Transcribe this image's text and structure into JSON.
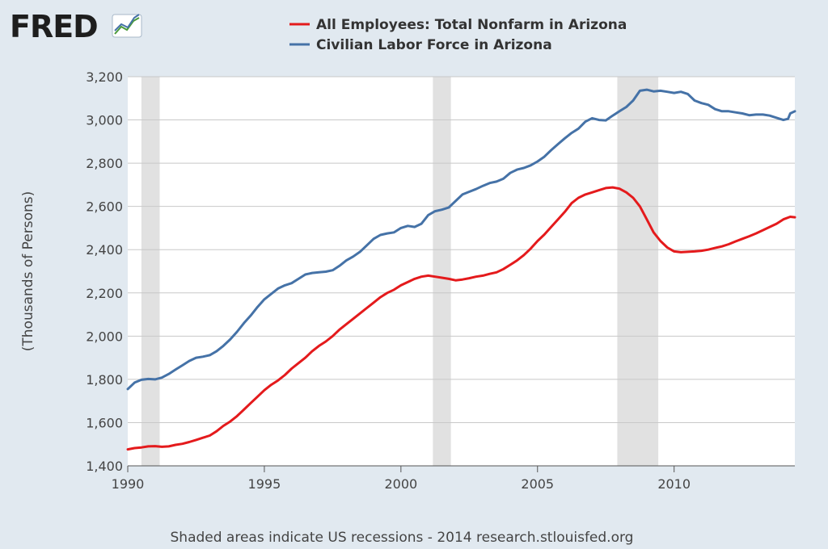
{
  "logo": {
    "text": "FRED"
  },
  "footer": {
    "note": "Shaded areas indicate US recessions - 2014 research.stlouisfed.org"
  },
  "colors": {
    "background": "#e1e9f0",
    "plot": "#ffffff",
    "recession": "#e1e1e1",
    "grid": "#c8c8c8",
    "series_red": "#e41a1c",
    "series_blue": "#4572a7"
  },
  "chart_data": {
    "type": "line",
    "ylabel": "(Thousands of Persons)",
    "xlim": [
      1990.0,
      2014.42
    ],
    "ylim": [
      1400,
      3200
    ],
    "xticks": [
      1990,
      1995,
      2000,
      2005,
      2010
    ],
    "yticks": [
      1400,
      1600,
      1800,
      2000,
      2200,
      2400,
      2600,
      2800,
      3000,
      3200
    ],
    "ytick_labels": [
      "1,400",
      "1,600",
      "1,800",
      "2,000",
      "2,200",
      "2,400",
      "2,600",
      "2,800",
      "3,000",
      "3,200"
    ],
    "grid": true,
    "legend_position": "top-center",
    "recessions": [
      [
        1990.5,
        1991.17
      ],
      [
        2001.17,
        2001.83
      ],
      [
        2007.92,
        2009.42
      ]
    ],
    "series": [
      {
        "name": "All Employees: Total Nonfarm in Arizona",
        "color": "#e41a1c",
        "points": [
          [
            1990.0,
            1476
          ],
          [
            1990.25,
            1482
          ],
          [
            1990.5,
            1485
          ],
          [
            1990.75,
            1490
          ],
          [
            1991.0,
            1491
          ],
          [
            1991.25,
            1488
          ],
          [
            1991.5,
            1490
          ],
          [
            1991.75,
            1497
          ],
          [
            1992.0,
            1502
          ],
          [
            1992.25,
            1510
          ],
          [
            1992.5,
            1520
          ],
          [
            1992.75,
            1530
          ],
          [
            1993.0,
            1540
          ],
          [
            1993.25,
            1560
          ],
          [
            1993.5,
            1585
          ],
          [
            1993.75,
            1605
          ],
          [
            1994.0,
            1630
          ],
          [
            1994.25,
            1660
          ],
          [
            1994.5,
            1690
          ],
          [
            1994.75,
            1720
          ],
          [
            1995.0,
            1750
          ],
          [
            1995.25,
            1775
          ],
          [
            1995.5,
            1795
          ],
          [
            1995.75,
            1820
          ],
          [
            1996.0,
            1850
          ],
          [
            1996.25,
            1875
          ],
          [
            1996.5,
            1900
          ],
          [
            1996.75,
            1930
          ],
          [
            1997.0,
            1955
          ],
          [
            1997.25,
            1975
          ],
          [
            1997.5,
            2000
          ],
          [
            1997.75,
            2030
          ],
          [
            1998.0,
            2055
          ],
          [
            1998.25,
            2080
          ],
          [
            1998.5,
            2105
          ],
          [
            1998.75,
            2130
          ],
          [
            1999.0,
            2155
          ],
          [
            1999.25,
            2180
          ],
          [
            1999.5,
            2200
          ],
          [
            1999.75,
            2215
          ],
          [
            2000.0,
            2235
          ],
          [
            2000.25,
            2250
          ],
          [
            2000.5,
            2265
          ],
          [
            2000.75,
            2275
          ],
          [
            2001.0,
            2280
          ],
          [
            2001.25,
            2275
          ],
          [
            2001.5,
            2270
          ],
          [
            2001.75,
            2265
          ],
          [
            2002.0,
            2258
          ],
          [
            2002.25,
            2262
          ],
          [
            2002.5,
            2268
          ],
          [
            2002.75,
            2275
          ],
          [
            2003.0,
            2280
          ],
          [
            2003.25,
            2288
          ],
          [
            2003.5,
            2295
          ],
          [
            2003.75,
            2310
          ],
          [
            2004.0,
            2330
          ],
          [
            2004.25,
            2350
          ],
          [
            2004.5,
            2375
          ],
          [
            2004.75,
            2405
          ],
          [
            2005.0,
            2440
          ],
          [
            2005.25,
            2470
          ],
          [
            2005.5,
            2505
          ],
          [
            2005.75,
            2540
          ],
          [
            2006.0,
            2575
          ],
          [
            2006.25,
            2615
          ],
          [
            2006.5,
            2640
          ],
          [
            2006.75,
            2655
          ],
          [
            2007.0,
            2665
          ],
          [
            2007.25,
            2675
          ],
          [
            2007.5,
            2685
          ],
          [
            2007.75,
            2688
          ],
          [
            2008.0,
            2682
          ],
          [
            2008.25,
            2665
          ],
          [
            2008.5,
            2640
          ],
          [
            2008.75,
            2600
          ],
          [
            2009.0,
            2540
          ],
          [
            2009.25,
            2480
          ],
          [
            2009.5,
            2440
          ],
          [
            2009.75,
            2410
          ],
          [
            2010.0,
            2392
          ],
          [
            2010.25,
            2388
          ],
          [
            2010.5,
            2390
          ],
          [
            2010.75,
            2392
          ],
          [
            2011.0,
            2395
          ],
          [
            2011.25,
            2400
          ],
          [
            2011.5,
            2408
          ],
          [
            2011.75,
            2415
          ],
          [
            2012.0,
            2425
          ],
          [
            2012.25,
            2438
          ],
          [
            2012.5,
            2450
          ],
          [
            2012.75,
            2462
          ],
          [
            2013.0,
            2475
          ],
          [
            2013.25,
            2490
          ],
          [
            2013.5,
            2505
          ],
          [
            2013.75,
            2520
          ],
          [
            2014.0,
            2540
          ],
          [
            2014.25,
            2552
          ],
          [
            2014.42,
            2550
          ]
        ]
      },
      {
        "name": "Civilian Labor Force in Arizona",
        "color": "#4572a7",
        "points": [
          [
            1990.0,
            1755
          ],
          [
            1990.25,
            1785
          ],
          [
            1990.5,
            1798
          ],
          [
            1990.75,
            1802
          ],
          [
            1991.0,
            1800
          ],
          [
            1991.25,
            1808
          ],
          [
            1991.5,
            1825
          ],
          [
            1991.75,
            1845
          ],
          [
            1992.0,
            1865
          ],
          [
            1992.25,
            1885
          ],
          [
            1992.5,
            1900
          ],
          [
            1992.75,
            1905
          ],
          [
            1993.0,
            1912
          ],
          [
            1993.25,
            1930
          ],
          [
            1993.5,
            1955
          ],
          [
            1993.75,
            1985
          ],
          [
            1994.0,
            2020
          ],
          [
            1994.25,
            2060
          ],
          [
            1994.5,
            2095
          ],
          [
            1994.75,
            2135
          ],
          [
            1995.0,
            2170
          ],
          [
            1995.25,
            2195
          ],
          [
            1995.5,
            2220
          ],
          [
            1995.75,
            2235
          ],
          [
            1996.0,
            2245
          ],
          [
            1996.25,
            2265
          ],
          [
            1996.5,
            2285
          ],
          [
            1996.75,
            2292
          ],
          [
            1997.0,
            2295
          ],
          [
            1997.25,
            2298
          ],
          [
            1997.5,
            2305
          ],
          [
            1997.75,
            2325
          ],
          [
            1998.0,
            2350
          ],
          [
            1998.25,
            2368
          ],
          [
            1998.5,
            2390
          ],
          [
            1998.75,
            2420
          ],
          [
            1999.0,
            2450
          ],
          [
            1999.25,
            2468
          ],
          [
            1999.5,
            2475
          ],
          [
            1999.75,
            2480
          ],
          [
            2000.0,
            2500
          ],
          [
            2000.25,
            2510
          ],
          [
            2000.5,
            2505
          ],
          [
            2000.75,
            2520
          ],
          [
            2001.0,
            2560
          ],
          [
            2001.25,
            2578
          ],
          [
            2001.5,
            2585
          ],
          [
            2001.75,
            2595
          ],
          [
            2002.0,
            2625
          ],
          [
            2002.25,
            2655
          ],
          [
            2002.5,
            2668
          ],
          [
            2002.75,
            2680
          ],
          [
            2003.0,
            2695
          ],
          [
            2003.25,
            2708
          ],
          [
            2003.5,
            2715
          ],
          [
            2003.75,
            2728
          ],
          [
            2004.0,
            2755
          ],
          [
            2004.25,
            2770
          ],
          [
            2004.5,
            2778
          ],
          [
            2004.75,
            2790
          ],
          [
            2005.0,
            2808
          ],
          [
            2005.25,
            2830
          ],
          [
            2005.5,
            2860
          ],
          [
            2005.75,
            2888
          ],
          [
            2006.0,
            2915
          ],
          [
            2006.25,
            2940
          ],
          [
            2006.5,
            2960
          ],
          [
            2006.75,
            2992
          ],
          [
            2007.0,
            3008
          ],
          [
            2007.25,
            3000
          ],
          [
            2007.5,
            2998
          ],
          [
            2007.75,
            3020
          ],
          [
            2008.0,
            3040
          ],
          [
            2008.25,
            3060
          ],
          [
            2008.5,
            3090
          ],
          [
            2008.75,
            3135
          ],
          [
            2009.0,
            3140
          ],
          [
            2009.25,
            3132
          ],
          [
            2009.5,
            3135
          ],
          [
            2009.75,
            3130
          ],
          [
            2010.0,
            3125
          ],
          [
            2010.25,
            3130
          ],
          [
            2010.5,
            3120
          ],
          [
            2010.75,
            3090
          ],
          [
            2011.0,
            3078
          ],
          [
            2011.25,
            3070
          ],
          [
            2011.5,
            3050
          ],
          [
            2011.75,
            3040
          ],
          [
            2012.0,
            3040
          ],
          [
            2012.25,
            3035
          ],
          [
            2012.5,
            3030
          ],
          [
            2012.75,
            3022
          ],
          [
            2013.0,
            3025
          ],
          [
            2013.25,
            3025
          ],
          [
            2013.5,
            3020
          ],
          [
            2013.75,
            3010
          ],
          [
            2014.0,
            3000
          ],
          [
            2014.17,
            3005
          ],
          [
            2014.25,
            3030
          ],
          [
            2014.42,
            3040
          ]
        ]
      }
    ]
  }
}
